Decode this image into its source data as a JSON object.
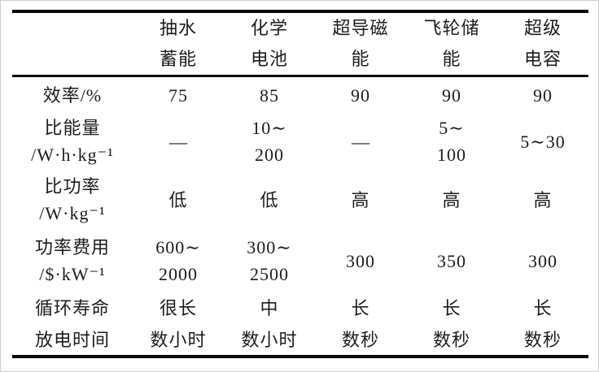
{
  "colors": {
    "background": "#ffffff",
    "text": "#1c1c1c",
    "rule": "#0a0a0a",
    "frame": "#cfcfcf"
  },
  "table": {
    "style": "three-line-booktabs",
    "header": {
      "cells": [
        {
          "line1": "",
          "line2": ""
        },
        {
          "line1": "抽水",
          "line2": "蓄能"
        },
        {
          "line1": "化学",
          "line2": "电池"
        },
        {
          "line1": "超导磁",
          "line2": "能"
        },
        {
          "line1": "飞轮储",
          "line2": "能"
        },
        {
          "line1": "超级",
          "line2": "电容"
        }
      ]
    },
    "rows": [
      {
        "label": {
          "line1": "效率/%",
          "line2": ""
        },
        "cells": [
          {
            "line1": "75",
            "line2": ""
          },
          {
            "line1": "85",
            "line2": ""
          },
          {
            "line1": "90",
            "line2": ""
          },
          {
            "line1": "90",
            "line2": ""
          },
          {
            "line1": "90",
            "line2": ""
          }
        ]
      },
      {
        "label": {
          "line1": "比能量",
          "line2": "/W·h·kg⁻¹"
        },
        "cells": [
          {
            "line1": "—",
            "line2": ""
          },
          {
            "line1": "10∼",
            "line2": "200"
          },
          {
            "line1": "—",
            "line2": ""
          },
          {
            "line1": "5∼",
            "line2": "100"
          },
          {
            "line1": "5∼30",
            "line2": ""
          }
        ]
      },
      {
        "label": {
          "line1": "比功率",
          "line2": "/W·kg⁻¹"
        },
        "cells": [
          {
            "line1": "低",
            "line2": ""
          },
          {
            "line1": "低",
            "line2": ""
          },
          {
            "line1": "高",
            "line2": ""
          },
          {
            "line1": "高",
            "line2": ""
          },
          {
            "line1": "高",
            "line2": ""
          }
        ]
      },
      {
        "label": {
          "line1": "功率费用",
          "line2": "/$·kW⁻¹"
        },
        "cells": [
          {
            "line1": "600∼",
            "line2": "2000"
          },
          {
            "line1": "300∼",
            "line2": "2500"
          },
          {
            "line1": "300",
            "line2": ""
          },
          {
            "line1": "350",
            "line2": ""
          },
          {
            "line1": "300",
            "line2": ""
          }
        ]
      },
      {
        "label": {
          "line1": "循环寿命",
          "line2": ""
        },
        "cells": [
          {
            "line1": "很长",
            "line2": ""
          },
          {
            "line1": "中",
            "line2": ""
          },
          {
            "line1": "长",
            "line2": ""
          },
          {
            "line1": "长",
            "line2": ""
          },
          {
            "line1": "长",
            "line2": ""
          }
        ]
      },
      {
        "label": {
          "line1": "放电时间",
          "line2": ""
        },
        "cells": [
          {
            "line1": "数小时",
            "line2": ""
          },
          {
            "line1": "数小时",
            "line2": ""
          },
          {
            "line1": "数秒",
            "line2": ""
          },
          {
            "line1": "数秒",
            "line2": ""
          },
          {
            "line1": "数秒",
            "line2": ""
          }
        ]
      }
    ]
  }
}
